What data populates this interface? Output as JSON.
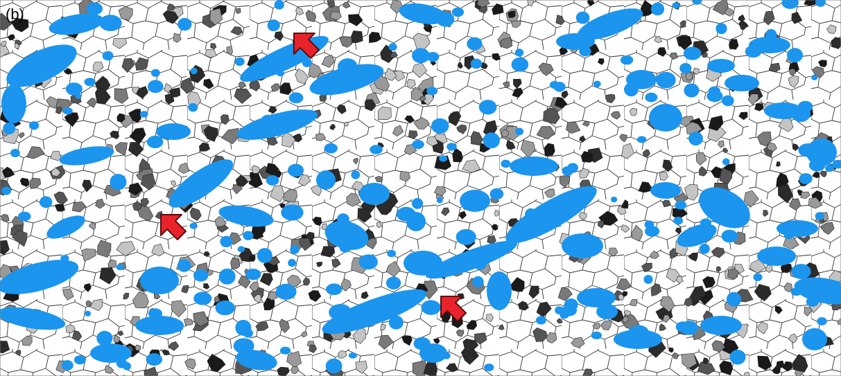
{
  "panel_label": "(b)"
}
